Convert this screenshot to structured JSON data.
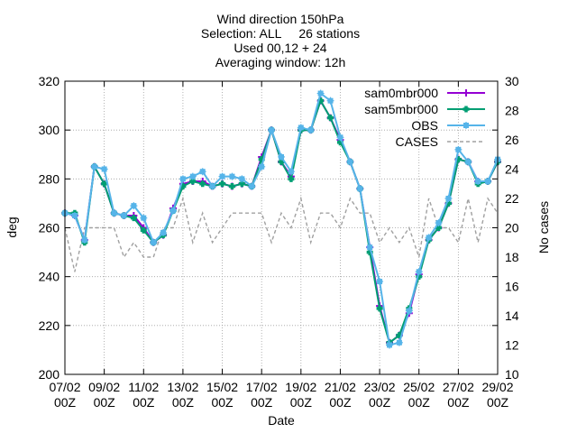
{
  "chart_data": {
    "type": "line",
    "title": [
      "Wind direction 150hPa",
      "Selection: ALL     26 stations",
      "Used 00,12 + 24",
      "Averaging window: 12h"
    ],
    "xlabel": "Date",
    "ylabel": "deg",
    "y2label": "No cases",
    "xlim": [
      "07/02 00Z",
      "29/02 00Z"
    ],
    "xticks": [
      {
        "l1": "07/02",
        "l2": "00Z",
        "d": 0
      },
      {
        "l1": "09/02",
        "l2": "00Z",
        "d": 2
      },
      {
        "l1": "11/02",
        "l2": "00Z",
        "d": 4
      },
      {
        "l1": "13/02",
        "l2": "00Z",
        "d": 6
      },
      {
        "l1": "15/02",
        "l2": "00Z",
        "d": 8
      },
      {
        "l1": "17/02",
        "l2": "00Z",
        "d": 10
      },
      {
        "l1": "19/02",
        "l2": "00Z",
        "d": 12
      },
      {
        "l1": "21/02",
        "l2": "00Z",
        "d": 14
      },
      {
        "l1": "23/02",
        "l2": "00Z",
        "d": 16
      },
      {
        "l1": "25/02",
        "l2": "00Z",
        "d": 18
      },
      {
        "l1": "27/02",
        "l2": "00Z",
        "d": 20
      },
      {
        "l1": "29/02",
        "l2": "00Z",
        "d": 22
      }
    ],
    "ylim": [
      200,
      320
    ],
    "yticks": [
      "200",
      "220",
      "240",
      "260",
      "280",
      "300",
      "320"
    ],
    "y2lim": [
      10,
      30
    ],
    "y2ticks": [
      "10",
      "12",
      "14",
      "16",
      "18",
      "20",
      "22",
      "24",
      "26",
      "28",
      "30"
    ],
    "legend_position": "top-right",
    "grid": true,
    "x_days": [
      0,
      0.5,
      1,
      1.5,
      2,
      2.5,
      3,
      3.5,
      4,
      4.5,
      5,
      5.5,
      6,
      6.5,
      7,
      7.5,
      8,
      8.5,
      9,
      9.5,
      10,
      10.5,
      11,
      11.5,
      12,
      12.5,
      13,
      13.5,
      14,
      14.5,
      15,
      15.5,
      16,
      16.5,
      17,
      17.5,
      18,
      18.5,
      19,
      19.5,
      20,
      20.5,
      21,
      21.5,
      22
    ],
    "series": [
      {
        "name": "sam0mbr000",
        "color": "#9400d3",
        "marker": "plus",
        "axis": "y",
        "values": [
          266,
          265,
          255,
          285,
          278,
          266,
          265,
          265,
          260,
          254,
          257,
          268,
          278,
          279,
          279,
          277,
          278,
          277,
          278,
          277,
          289,
          300,
          287,
          281,
          300,
          300,
          312,
          305,
          296,
          287,
          276,
          252,
          228,
          213,
          216,
          225,
          241,
          255,
          260,
          270,
          288,
          287,
          279,
          279,
          287
        ]
      },
      {
        "name": "sam5mbr000",
        "color": "#009e73",
        "marker": "diamond",
        "axis": "y",
        "values": [
          266,
          266,
          254,
          285,
          278,
          266,
          265,
          264,
          259,
          254,
          257,
          267,
          277,
          279,
          278,
          277,
          278,
          277,
          278,
          277,
          288,
          300,
          287,
          280,
          300,
          300,
          312,
          305,
          295,
          287,
          276,
          250,
          227,
          213,
          216,
          227,
          240,
          255,
          260,
          270,
          288,
          287,
          278,
          279,
          287
        ]
      },
      {
        "name": "OBS",
        "color": "#56b4e9",
        "marker": "circle",
        "axis": "y",
        "values": [
          266,
          265,
          255,
          285,
          284,
          266,
          265,
          269,
          264,
          254,
          258,
          267,
          280,
          281,
          283,
          277,
          281,
          281,
          280,
          277,
          285,
          300,
          289,
          283,
          301,
          300,
          315,
          312,
          297,
          287,
          276,
          252,
          238,
          212,
          213,
          226,
          242,
          256,
          262,
          272,
          292,
          287,
          279,
          279,
          288
        ]
      },
      {
        "name": "CASES",
        "color": "#a0a0a0",
        "dashed": true,
        "axis": "y2",
        "values": [
          20,
          17,
          20,
          20,
          20,
          20,
          18,
          19,
          18,
          18,
          20,
          20,
          22,
          19,
          21,
          19,
          20,
          21,
          21,
          21,
          21,
          19,
          21,
          20,
          22,
          19,
          21,
          21,
          20,
          22,
          21,
          21,
          19,
          20,
          19,
          20,
          18,
          22,
          20,
          20,
          19,
          22,
          19,
          22,
          21
        ]
      }
    ]
  }
}
